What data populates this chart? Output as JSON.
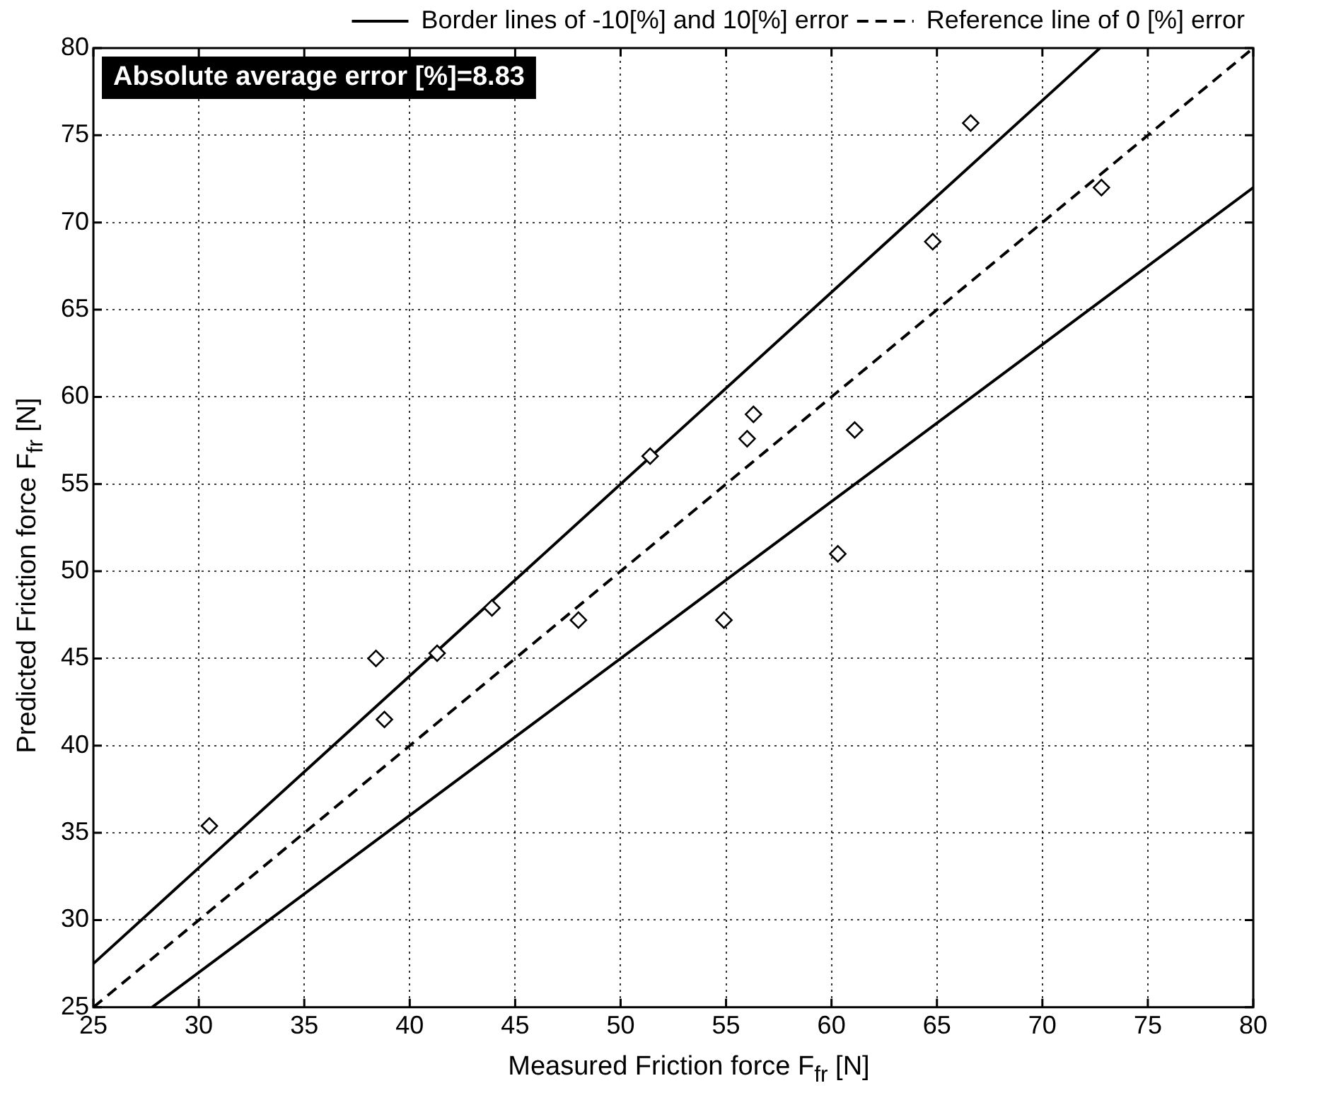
{
  "chart_data": {
    "type": "scatter",
    "xlabel": "Measured Friction force F$_{fr}$  [N]",
    "ylabel": "Predicted Friction force F$_{fr}$  [N]",
    "annotations": [
      "Absolute average error [%]=8.83"
    ],
    "series": [
      {
        "type": "scatter",
        "color": "#000000",
        "marker": "diamond",
        "x": [
          30.5,
          38.4,
          38.8,
          41.3,
          43.9,
          48.0,
          51.4,
          54.9,
          56.0,
          56.3,
          60.3,
          61.1,
          64.8,
          66.6,
          72.8
        ],
        "values": [
          35.4,
          45.0,
          41.5,
          45.3,
          47.9,
          47.2,
          56.6,
          47.2,
          57.6,
          59.0,
          51.0,
          58.1,
          68.9,
          75.7,
          72.0
        ]
      },
      {
        "type": "line",
        "name": "Border lines of -10[%] and 10[%] error",
        "color": "#000000",
        "line_style": "solid",
        "marker": "none",
        "x": [
          25,
          72.73
        ],
        "values": [
          27.5,
          80
        ]
      },
      {
        "type": "line",
        "color": "#000000",
        "line_style": "solid",
        "marker": "none",
        "x": [
          27.78,
          80
        ],
        "values": [
          25,
          72
        ]
      },
      {
        "type": "line",
        "name": "Reference line of 0 [%] error",
        "color": "#000000",
        "line_style": "dashed",
        "marker": "none",
        "x": [
          25,
          80
        ],
        "values": [
          25,
          80
        ]
      }
    ],
    "xlim": [
      25,
      80
    ],
    "xticks": [
      25,
      30,
      35,
      40,
      45,
      50,
      55,
      60,
      65,
      70,
      75,
      80
    ],
    "ylim": [
      25,
      80
    ],
    "yticks": [
      25,
      30,
      35,
      40,
      45,
      50,
      55,
      60,
      65,
      70,
      75,
      80
    ],
    "grid": true,
    "legend": "top right"
  }
}
